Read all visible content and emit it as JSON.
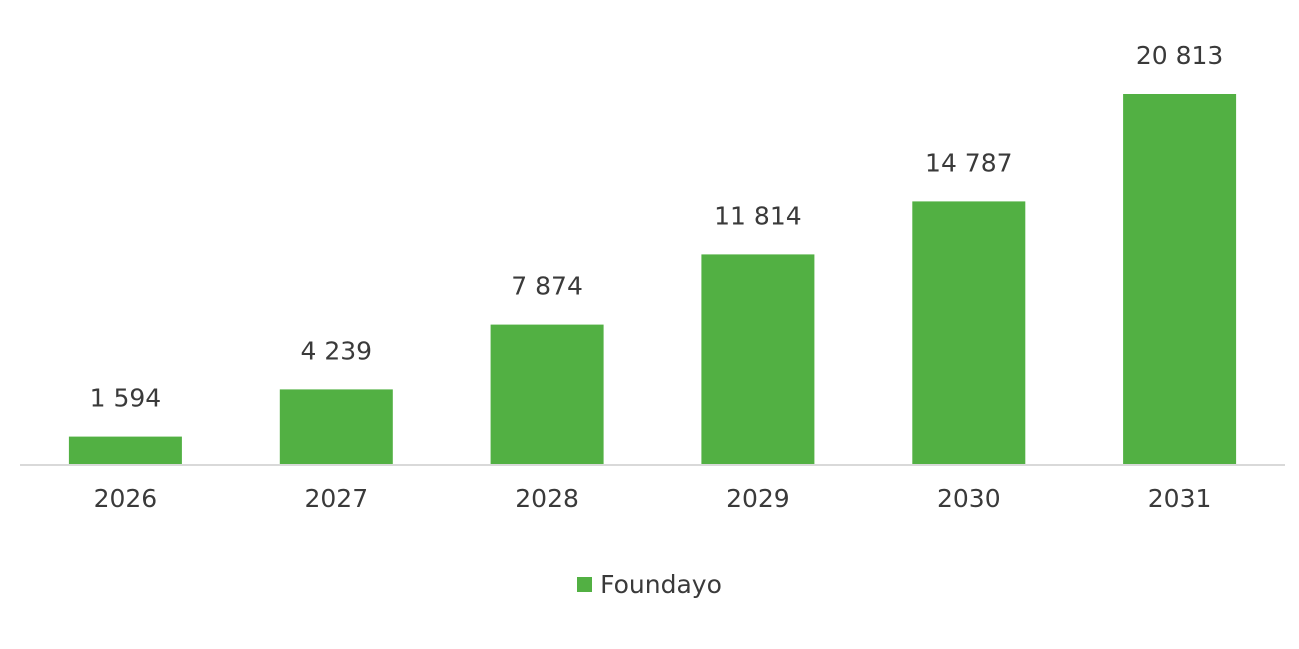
{
  "chart_data": {
    "type": "bar",
    "categories": [
      "2026",
      "2027",
      "2028",
      "2029",
      "2030",
      "2031"
    ],
    "series": [
      {
        "name": "Foundayo",
        "values": [
          1594,
          4239,
          7874,
          11814,
          14787,
          20813
        ],
        "labels": [
          "1 594",
          "4 239",
          "7 874",
          "11 814",
          "14 787",
          "20 813"
        ],
        "color": "#52b043"
      }
    ],
    "ylim": [
      0,
      20813
    ],
    "grid": false,
    "legend_position": "bottom-center",
    "axis_color": "#d9d9d9"
  }
}
